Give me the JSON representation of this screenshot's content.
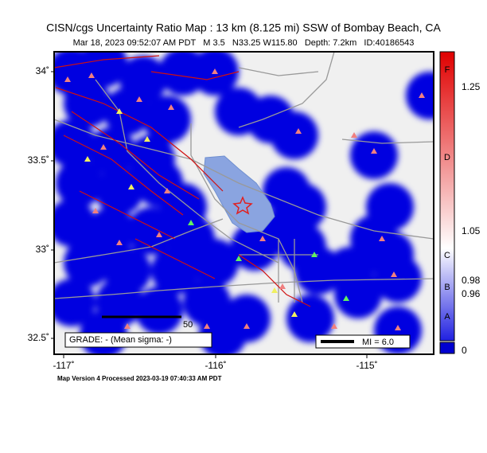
{
  "header": {
    "title": "CISN/cgs Uncertainty Ratio Map : 13 km (8.125 mi) SSW of Bombay Beach, CA",
    "subtitle": "Mar 18, 2023 09:52:07 AM PDT   M 3.5   N33.25 W115.80   Depth: 7.2km   ID:40186543"
  },
  "map": {
    "lat_labels": [
      "34˚",
      "33.5˚",
      "33˚",
      "32.5˚"
    ],
    "lon_labels": [
      "-117˚",
      "-116˚",
      "-115˚"
    ],
    "grade": "GRADE: - (Mean sigma: -)",
    "scale_km": "50",
    "mi_label": "MI = 6.0"
  },
  "colorbar": {
    "letters": [
      "F",
      "D",
      "C",
      "B",
      "A"
    ],
    "values": [
      "1.25",
      "1.05",
      "0.98",
      "0.96",
      "0"
    ]
  },
  "footer": "Map Version 4 Processed 2023-03-19 07:40:33 AM PDT"
}
